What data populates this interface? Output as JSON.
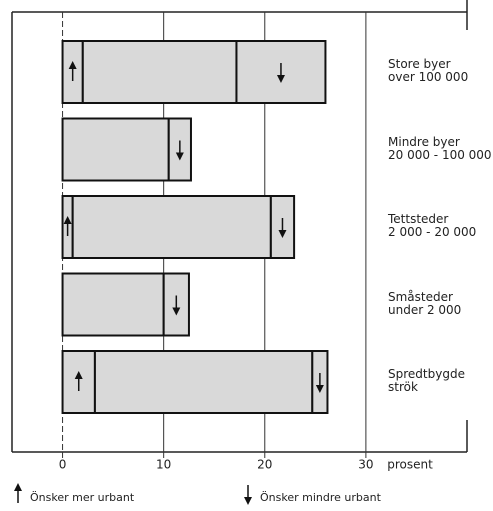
{
  "chart_data": {
    "type": "stacked_bar_horizontal",
    "categories": [
      "Store byer\nover 100 000",
      "Mindre byer\n20 000 - 100 000",
      "Tettsteder\n2 000 - 20 000",
      "Småsteder\nunder 2 000",
      "Spredtbygde\nströk"
    ],
    "series": [
      {
        "name": "Önsker mer urbant",
        "color": "#d9d9d9",
        "values": [
          2,
          0,
          1,
          0,
          3.2
        ]
      },
      {
        "color": "#d9d9d9",
        "values": [
          15.2,
          10.5,
          19.6,
          10,
          21.5
        ]
      },
      {
        "name": "Önsker mindre urbant",
        "color": "#d9d9d9",
        "values": [
          8.8,
          2.2,
          2.3,
          2.5,
          1.5
        ]
      }
    ],
    "xlim": [
      -5,
      40
    ],
    "xticks": [
      0,
      10,
      20,
      30
    ],
    "xlabel": "prosent",
    "grid": true
  }
}
